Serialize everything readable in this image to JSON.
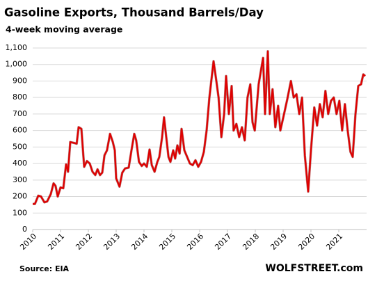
{
  "chart_data": {
    "type": "line",
    "title": "Gasoline Exports, Thousand Barrels/Day",
    "subtitle": "4-week moving average",
    "source": "Source: EIA",
    "credit": "WOLFSTREET.com",
    "color": "#e00000",
    "grid": true,
    "xlim": [
      2010,
      2022
    ],
    "xticks": [
      2010,
      2011,
      2012,
      2013,
      2014,
      2015,
      2016,
      2017,
      2018,
      2019,
      2020,
      2021
    ],
    "ylim": [
      0,
      1100
    ],
    "yticks": [
      0,
      100,
      200,
      300,
      400,
      500,
      600,
      700,
      800,
      900,
      {
        "value": 1000,
        "label": "1,000"
      },
      {
        "value": 1100,
        "label": "1,100"
      }
    ],
    "x": [
      2010.0,
      2010.08,
      2010.2,
      2010.3,
      2010.42,
      2010.52,
      2010.65,
      2010.75,
      2010.82,
      2010.9,
      2011.0,
      2011.1,
      2011.2,
      2011.27,
      2011.35,
      2011.48,
      2011.58,
      2011.65,
      2011.75,
      2011.85,
      2011.95,
      2012.05,
      2012.15,
      2012.25,
      2012.33,
      2012.42,
      2012.5,
      2012.58,
      2012.67,
      2012.78,
      2012.88,
      2012.95,
      2013.0,
      2013.12,
      2013.22,
      2013.32,
      2013.45,
      2013.55,
      2013.65,
      2013.72,
      2013.82,
      2013.92,
      2014.0,
      2014.1,
      2014.2,
      2014.28,
      2014.38,
      2014.48,
      2014.55,
      2014.65,
      2014.72,
      2014.8,
      2014.88,
      2014.95,
      2015.05,
      2015.12,
      2015.2,
      2015.28,
      2015.35,
      2015.45,
      2015.55,
      2015.65,
      2015.75,
      2015.85,
      2015.95,
      2016.05,
      2016.15,
      2016.25,
      2016.35,
      2016.5,
      2016.6,
      2016.68,
      2016.78,
      2016.88,
      2016.95,
      2017.05,
      2017.15,
      2017.22,
      2017.32,
      2017.42,
      2017.52,
      2017.62,
      2017.72,
      2017.82,
      2017.9,
      2017.98,
      2018.12,
      2018.28,
      2018.35,
      2018.45,
      2018.52,
      2018.62,
      2018.72,
      2018.82,
      2018.9,
      2019.02,
      2019.15,
      2019.28,
      2019.38,
      2019.48,
      2019.58,
      2019.68,
      2019.78,
      2019.9,
      2020.0,
      2020.12,
      2020.22,
      2020.32,
      2020.42,
      2020.52,
      2020.62,
      2020.72,
      2020.82,
      2020.92,
      2021.02,
      2021.12,
      2021.22,
      2021.32,
      2021.42,
      2021.5,
      2021.6,
      2021.7,
      2021.8,
      2021.88,
      2021.95
    ],
    "values": [
      155,
      155,
      205,
      200,
      165,
      170,
      215,
      280,
      265,
      200,
      255,
      250,
      395,
      350,
      530,
      525,
      520,
      620,
      610,
      380,
      415,
      400,
      350,
      330,
      365,
      330,
      345,
      450,
      480,
      580,
      530,
      480,
      310,
      260,
      345,
      370,
      375,
      480,
      580,
      540,
      410,
      385,
      400,
      380,
      485,
      390,
      350,
      410,
      440,
      560,
      680,
      560,
      440,
      410,
      480,
      430,
      510,
      460,
      610,
      480,
      440,
      400,
      390,
      420,
      380,
      410,
      470,
      600,
      800,
      1020,
      900,
      800,
      560,
      700,
      930,
      700,
      870,
      600,
      640,
      560,
      620,
      540,
      800,
      880,
      650,
      600,
      880,
      1040,
      700,
      1080,
      700,
      850,
      620,
      750,
      600,
      690,
      790,
      900,
      800,
      820,
      700,
      800,
      450,
      230,
      480,
      740,
      630,
      760,
      680,
      840,
      700,
      780,
      800,
      700,
      780,
      600,
      760,
      600,
      470,
      440,
      700,
      870,
      880,
      940,
      930
    ]
  }
}
